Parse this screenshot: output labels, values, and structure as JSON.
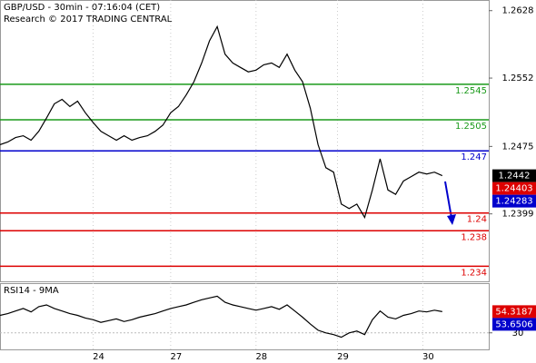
{
  "chart_data": [
    {
      "type": "line",
      "title": "GBP/USD - 30min - 07:16:04 (CET)",
      "subtitle": "Research © 2017 TRADING CENTRAL",
      "x": [
        0,
        1,
        2,
        3,
        4,
        5,
        6,
        7,
        8,
        9,
        10,
        11,
        12,
        13,
        14,
        15,
        16,
        17,
        18,
        19,
        20,
        21,
        22,
        23,
        24,
        25,
        26,
        27,
        28,
        29,
        30,
        31,
        32,
        33,
        34,
        35,
        36,
        37,
        38,
        39,
        40,
        41,
        42,
        43,
        44,
        45,
        46,
        47,
        48,
        49,
        50,
        51,
        52,
        53,
        54,
        55,
        56,
        57
      ],
      "values": [
        1.2477,
        1.248,
        1.2485,
        1.2487,
        1.2482,
        1.2492,
        1.2507,
        1.2523,
        1.2528,
        1.252,
        1.2526,
        1.2513,
        1.2502,
        1.2492,
        1.2487,
        1.2482,
        1.2487,
        1.2482,
        1.2485,
        1.2487,
        1.2492,
        1.2499,
        1.2513,
        1.252,
        1.2533,
        1.2548,
        1.2569,
        1.2594,
        1.261,
        1.2579,
        1.2569,
        1.2564,
        1.2559,
        1.2561,
        1.2567,
        1.2569,
        1.2564,
        1.2579,
        1.2561,
        1.2548,
        1.2518,
        1.2477,
        1.2451,
        1.2446,
        1.241,
        1.2405,
        1.241,
        1.2395,
        1.2426,
        1.2461,
        1.2426,
        1.2421,
        1.2436,
        1.2441,
        1.2446,
        1.2444,
        1.2446,
        1.2442
      ],
      "color": "#000000",
      "xlim": [
        0,
        63
      ],
      "xticks": [
        {
          "value": 12,
          "label": "24"
        },
        {
          "value": 22,
          "label": "27"
        },
        {
          "value": 33,
          "label": "28"
        },
        {
          "value": 43.5,
          "label": "29"
        },
        {
          "value": 54.5,
          "label": "30"
        }
      ],
      "ylim": [
        1.2323,
        1.264
      ],
      "yticks": [
        1.2628,
        1.2552,
        1.2475,
        1.2399
      ],
      "levels": [
        {
          "value": 1.2545,
          "color": "#1a9a1a"
        },
        {
          "value": 1.2505,
          "color": "#1a9a1a"
        },
        {
          "value": 1.247,
          "color": "#0000cc"
        },
        {
          "value": 1.24,
          "color": "#dd0000"
        },
        {
          "value": 1.238,
          "color": "#dd0000"
        },
        {
          "value": 1.234,
          "color": "#dd0000"
        }
      ],
      "price_labels": [
        {
          "value": 1.2442,
          "label": "1.2442",
          "color": "#000000"
        },
        {
          "value": 1.24403,
          "label": "1.24403",
          "color": "#dd0000"
        },
        {
          "value": 1.24283,
          "label": "1.24283",
          "color": "#0000cc"
        }
      ]
    },
    {
      "type": "line",
      "title": "RSI14 - 9MA",
      "values": [
        50,
        52,
        55,
        58,
        54,
        60,
        62,
        58,
        55,
        52,
        50,
        47,
        45,
        42,
        44,
        46,
        43,
        45,
        48,
        50,
        52,
        55,
        58,
        60,
        62,
        65,
        68,
        70,
        72,
        65,
        62,
        60,
        58,
        56,
        58,
        60,
        57,
        62,
        55,
        48,
        40,
        33,
        30,
        28,
        25,
        30,
        32,
        28,
        45,
        55,
        48,
        46,
        50,
        52,
        55,
        54,
        56,
        54.3187
      ],
      "color": "#000000",
      "xlim": [
        0,
        63
      ],
      "ylim": [
        11,
        87
      ],
      "yticks": [
        30
      ],
      "price_labels": [
        {
          "value": 54.3187,
          "label": "54.3187",
          "color": "#dd0000"
        },
        {
          "value": 53.6506,
          "label": "53.6506",
          "color": "#0000cc"
        }
      ]
    }
  ]
}
